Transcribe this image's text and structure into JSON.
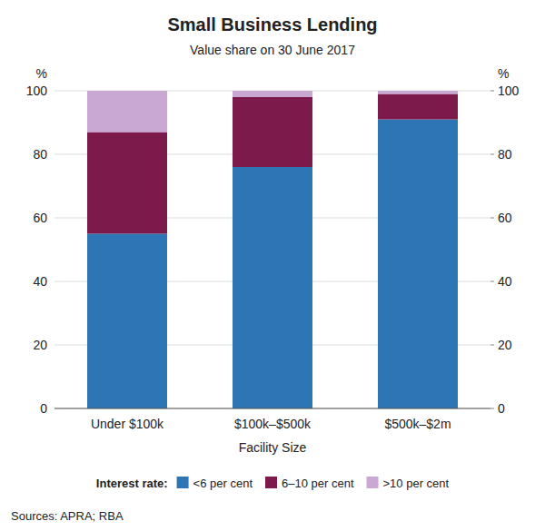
{
  "chart_data": {
    "type": "bar",
    "stacked": true,
    "title": "Small Business Lending",
    "subtitle": "Value share on 30 June 2017",
    "xlabel": "Facility Size",
    "ylabel": "%",
    "y2label": "%",
    "categories": [
      "Under $100k",
      "$100k–$500k",
      "$500k–$2m"
    ],
    "series": [
      {
        "name": "<6 per cent",
        "color": "#2E75B6",
        "values": [
          55,
          76,
          91
        ]
      },
      {
        "name": "6–10 per cent",
        "color": "#7B1A4B",
        "values": [
          32,
          22,
          8
        ]
      },
      {
        "name": ">10 per cent",
        "color": "#C9A8D4",
        "values": [
          13,
          2,
          1
        ]
      }
    ],
    "ylim": [
      0,
      100
    ],
    "yticks": [
      0,
      20,
      40,
      60,
      80,
      100
    ],
    "y2lim": [
      0,
      100
    ],
    "y2ticks": [
      0,
      20,
      40,
      60,
      80,
      100
    ],
    "grid": true,
    "legend": "bottom",
    "legend_title": "Interest rate:",
    "source": "Sources: APRA; RBA"
  }
}
